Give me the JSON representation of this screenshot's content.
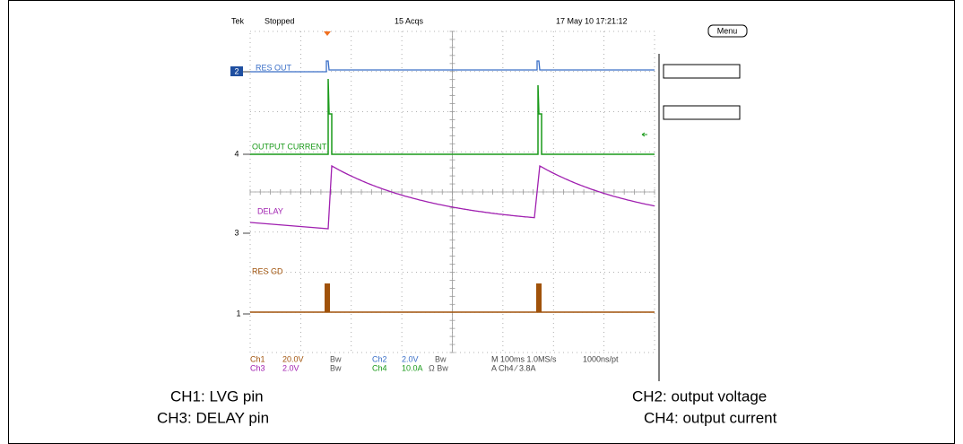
{
  "header": {
    "brand": "Tek",
    "status": "Stopped",
    "acquisitions": "15 Acqs",
    "timestamp": "17 May 10 17:21:12"
  },
  "menu": "Menu",
  "trace_labels": {
    "ch2": "RES OUT",
    "ch4": "OUTPUT CURRENT",
    "ch3": "DELAY",
    "ch1": "RES GD"
  },
  "channel_markers": {
    "ch2": "2",
    "ch4": "4",
    "ch3": "3",
    "ch1": "1"
  },
  "readouts": {
    "row1": [
      "Ch1",
      "20.0V",
      "Bw",
      "Ch2",
      "2.0V",
      "Bw",
      "M 100ms 1.0MS/s",
      "1000ns/pt"
    ],
    "row2": [
      "Ch3",
      "2.0V",
      "Bw",
      "Ch4",
      "10.0A",
      "Ω Bw",
      "A Ch4 ⁄ 3.8A"
    ]
  },
  "captions": {
    "ch1": "CH1: LVG pin",
    "ch3": "CH3: DELAY pin",
    "ch2": "CH2: output voltage",
    "ch4": "CH4: output current"
  }
}
